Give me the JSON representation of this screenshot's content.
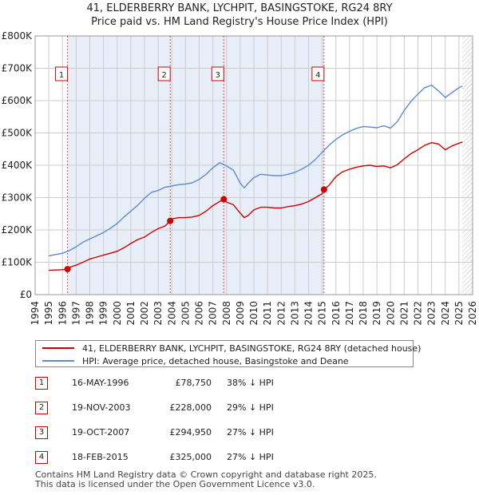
{
  "chart_data": {
    "type": "line",
    "title": "41, ELDERBERRY BANK, LYCHPIT, BASINGSTOKE, RG24 8RY",
    "subtitle": "Price paid vs. HM Land Registry's House Price Index (HPI)",
    "xlabel": "",
    "ylabel": "",
    "xlim": [
      1994,
      2026
    ],
    "ylim": [
      0,
      800000
    ],
    "x_ticks": [
      1994,
      1995,
      1996,
      1997,
      1998,
      1999,
      2000,
      2001,
      2002,
      2003,
      2004,
      2005,
      2006,
      2007,
      2008,
      2009,
      2010,
      2011,
      2012,
      2013,
      2014,
      2015,
      2016,
      2017,
      2018,
      2019,
      2020,
      2021,
      2022,
      2023,
      2024,
      2025,
      2026
    ],
    "y_ticks": [
      {
        "value": 0,
        "label": "£0"
      },
      {
        "value": 100000,
        "label": "£100K"
      },
      {
        "value": 200000,
        "label": "£200K"
      },
      {
        "value": 300000,
        "label": "£300K"
      },
      {
        "value": 400000,
        "label": "£400K"
      },
      {
        "value": 500000,
        "label": "£500K"
      },
      {
        "value": 600000,
        "label": "£600K"
      },
      {
        "value": 700000,
        "label": "£700K"
      },
      {
        "value": 800000,
        "label": "£800K"
      }
    ],
    "grid": true,
    "series": [
      {
        "name": "41, ELDERBERRY BANK, LYCHPIT, BASINGSTOKE, RG24 8RY (detached house)",
        "color": "#cc0000",
        "x": [
          1995.0,
          1995.5,
          1996.0,
          1996.37,
          1996.5,
          1997.0,
          1997.5,
          1998.0,
          1998.5,
          1999.0,
          1999.5,
          2000.0,
          2000.5,
          2001.0,
          2001.5,
          2002.0,
          2002.5,
          2003.0,
          2003.5,
          2003.88,
          2004.0,
          2004.5,
          2005.0,
          2005.5,
          2006.0,
          2006.5,
          2007.0,
          2007.5,
          2007.8,
          2008.0,
          2008.5,
          2009.0,
          2009.3,
          2009.6,
          2010.0,
          2010.5,
          2011.0,
          2011.5,
          2012.0,
          2012.5,
          2013.0,
          2013.5,
          2014.0,
          2014.5,
          2015.0,
          2015.13,
          2015.5,
          2016.0,
          2016.5,
          2017.0,
          2017.5,
          2018.0,
          2018.5,
          2019.0,
          2019.5,
          2020.0,
          2020.5,
          2021.0,
          2021.5,
          2022.0,
          2022.5,
          2023.0,
          2023.5,
          2024.0,
          2024.5,
          2025.0,
          2025.25
        ],
        "values": [
          75000,
          76000,
          77000,
          78750,
          84000,
          91000,
          100000,
          110000,
          116000,
          122000,
          128000,
          134000,
          145000,
          158000,
          170000,
          178000,
          192000,
          204000,
          212000,
          228000,
          234000,
          238000,
          238000,
          240000,
          245000,
          258000,
          275000,
          288000,
          294950,
          286000,
          278000,
          252000,
          238000,
          245000,
          262000,
          270000,
          270000,
          268000,
          268000,
          272000,
          275000,
          280000,
          288000,
          300000,
          312000,
          325000,
          338000,
          365000,
          380000,
          388000,
          394000,
          398000,
          400000,
          396000,
          398000,
          392000,
          402000,
          420000,
          436000,
          448000,
          462000,
          470000,
          466000,
          448000,
          460000,
          468000,
          472000
        ]
      },
      {
        "name": "HPI: Average price, detached house, Basingstoke and Deane",
        "color": "#5b8bd0",
        "x": [
          1995.0,
          1995.5,
          1996.0,
          1996.5,
          1997.0,
          1997.5,
          1998.0,
          1998.5,
          1999.0,
          1999.5,
          2000.0,
          2000.5,
          2001.0,
          2001.5,
          2002.0,
          2002.5,
          2003.0,
          2003.5,
          2004.0,
          2004.5,
          2005.0,
          2005.5,
          2006.0,
          2006.5,
          2007.0,
          2007.5,
          2008.0,
          2008.5,
          2009.0,
          2009.3,
          2009.6,
          2010.0,
          2010.5,
          2011.0,
          2011.5,
          2012.0,
          2012.5,
          2013.0,
          2013.5,
          2014.0,
          2014.5,
          2015.0,
          2015.5,
          2016.0,
          2016.5,
          2017.0,
          2017.5,
          2018.0,
          2018.5,
          2019.0,
          2019.5,
          2020.0,
          2020.5,
          2021.0,
          2021.5,
          2022.0,
          2022.5,
          2023.0,
          2023.5,
          2024.0,
          2024.5,
          2025.0,
          2025.25
        ],
        "values": [
          120000,
          124000,
          128000,
          136000,
          148000,
          162000,
          172000,
          182000,
          192000,
          205000,
          220000,
          240000,
          258000,
          276000,
          298000,
          316000,
          322000,
          332000,
          336000,
          340000,
          342000,
          346000,
          356000,
          372000,
          392000,
          408000,
          398000,
          385000,
          345000,
          330000,
          345000,
          362000,
          372000,
          370000,
          368000,
          368000,
          372000,
          378000,
          388000,
          400000,
          418000,
          440000,
          462000,
          480000,
          494000,
          505000,
          514000,
          520000,
          518000,
          516000,
          522000,
          515000,
          535000,
          570000,
          598000,
          620000,
          640000,
          648000,
          630000,
          610000,
          625000,
          640000,
          645000
        ]
      }
    ],
    "events": [
      {
        "id": "1",
        "x": 1996.37,
        "value": 78750
      },
      {
        "id": "2",
        "x": 2003.88,
        "value": 228000
      },
      {
        "id": "3",
        "x": 2007.8,
        "value": 294950
      },
      {
        "id": "4",
        "x": 2015.13,
        "value": 325000
      }
    ]
  },
  "legend": {
    "property_label": "41, ELDERBERRY BANK, LYCHPIT, BASINGSTOKE, RG24 8RY (detached house)",
    "hpi_label": "HPI: Average price, detached house, Basingstoke and Deane"
  },
  "transactions": [
    {
      "id": "1",
      "date": "16-MAY-1996",
      "price": "£78,750",
      "hpi": "38% ↓ HPI"
    },
    {
      "id": "2",
      "date": "19-NOV-2003",
      "price": "£228,000",
      "hpi": "29% ↓ HPI"
    },
    {
      "id": "3",
      "date": "19-OCT-2007",
      "price": "£294,950",
      "hpi": "27% ↓ HPI"
    },
    {
      "id": "4",
      "date": "18-FEB-2015",
      "price": "£325,000",
      "hpi": "27% ↓ HPI"
    }
  ],
  "footer": {
    "line1": "Contains HM Land Registry data © Crown copyright and database right 2025.",
    "line2": "This data is licensed under the Open Government Licence v3.0."
  },
  "colors": {
    "property": "#cc0000",
    "hpi": "#5b8bd0",
    "shade": "#e8eef8",
    "grid": "#cccccc"
  }
}
